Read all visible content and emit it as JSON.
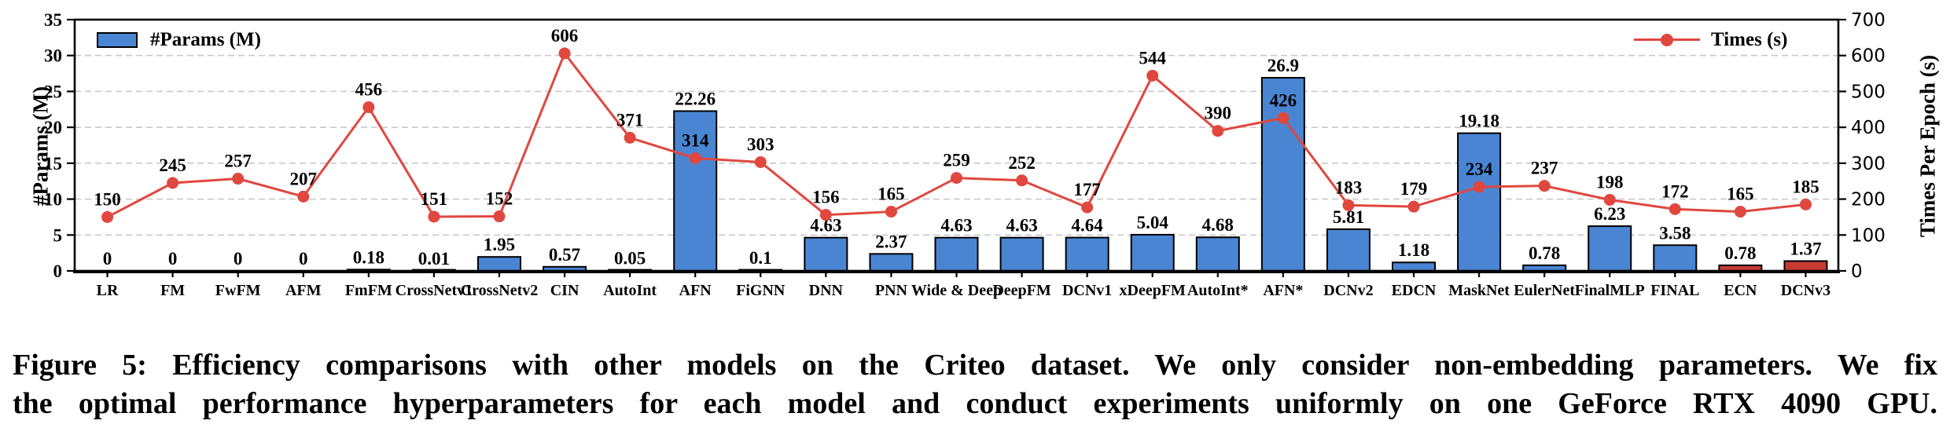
{
  "figure": {
    "caption_line1": "Figure 5: Efficiency comparisons with other models on the Criteo dataset. We only consider non-embedding parameters. We fix",
    "caption_line2": "the optimal performance hyperparameters for each model and conduct experiments uniformly on one GeForce RTX 4090 GPU."
  },
  "legend": {
    "params_label": "#Params (M)",
    "times_label": "Times (s)"
  },
  "axes": {
    "left_title": "#Params (M)",
    "right_title": "Times Per Epoch (s)",
    "left_ticks": [
      0,
      5,
      10,
      15,
      20,
      25,
      30,
      35
    ],
    "right_ticks": [
      0,
      100,
      200,
      300,
      400,
      500,
      600,
      700
    ]
  },
  "colors": {
    "bar_blue": "#4a85d3",
    "bar_red": "#c73a34",
    "line_red": "#e0473f",
    "grid": "#c9c9c9",
    "axis": "#000000"
  },
  "chart_data": {
    "type": "bar+line",
    "title": "",
    "xlabel": "",
    "ylabel_left": "#Params (M)",
    "ylabel_right": "Times Per Epoch (s)",
    "ylim_left": [
      0,
      35
    ],
    "ylim_right": [
      0,
      700
    ],
    "grid": "horizontal dashed",
    "legend_position": "params top-left, times top-right",
    "categories": [
      "LR",
      "FM",
      "FwFM",
      "AFM",
      "FmFM",
      "CrossNetv1",
      "CrossNetv2",
      "CIN",
      "AutoInt",
      "AFN",
      "FiGNN",
      "DNN",
      "PNN",
      "Wide & Deep",
      "DeepFM",
      "DCNv1",
      "xDeepFM",
      "AutoInt*",
      "AFN*",
      "DCNv2",
      "EDCN",
      "MaskNet",
      "EulerNet",
      "FinalMLP",
      "FINAL",
      "ECN",
      "DCNv3"
    ],
    "series": [
      {
        "name": "#Params (M)",
        "type": "bar",
        "axis": "left",
        "values": [
          "0",
          "0",
          "0",
          "0",
          "0.18",
          "0.01",
          "1.95",
          "0.57",
          "0.05",
          "22.26",
          "0.1",
          "4.63",
          "2.37",
          "4.63",
          "4.63",
          "4.64",
          "5.04",
          "4.68",
          "26.9",
          "5.81",
          "1.18",
          "19.18",
          "0.78",
          "6.23",
          "3.58",
          "0.78",
          "1.37"
        ]
      },
      {
        "name": "Times (s)",
        "type": "line",
        "axis": "right",
        "values": [
          150,
          245,
          257,
          207,
          456,
          151,
          152,
          606,
          371,
          314,
          303,
          156,
          165,
          259,
          252,
          177,
          544,
          390,
          426,
          183,
          179,
          234,
          237,
          198,
          172,
          165,
          185
        ]
      }
    ],
    "highlighted_categories": [
      "ECN",
      "DCNv3"
    ]
  }
}
